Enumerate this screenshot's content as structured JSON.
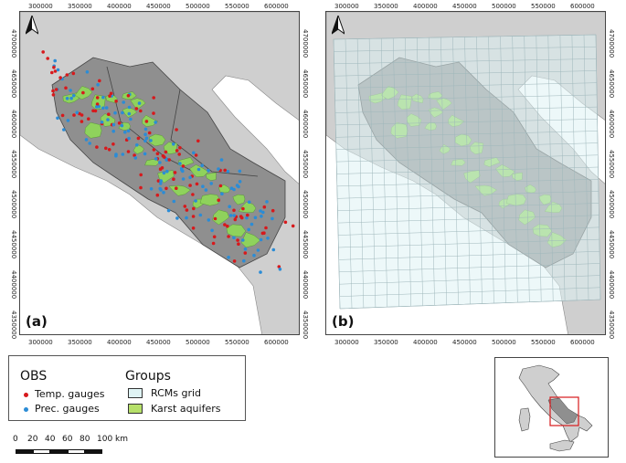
{
  "panels": [
    {
      "label": "(a)"
    },
    {
      "label": "(b)"
    }
  ],
  "north_arrow": "N",
  "x_ticks": [
    "300000",
    "350000",
    "400000",
    "450000",
    "500000",
    "550000",
    "600000"
  ],
  "y_ticks": [
    "4700000",
    "4650000",
    "4600000",
    "4550000",
    "4500000",
    "4450000",
    "4400000",
    "4350000"
  ],
  "legend": {
    "obs_title": "OBS",
    "obs_items": [
      "Temp. gauges",
      "Prec. gauges"
    ],
    "groups_title": "Groups",
    "groups_items": [
      "RCMs grid",
      "Karst aquifers"
    ]
  },
  "scale_bar": {
    "labels": [
      "0",
      "20",
      "40",
      "60",
      "80",
      "100 km"
    ]
  },
  "colors": {
    "temp_gauge": "#d7191c",
    "prec_gauge": "#2b8cd6",
    "karst": "#8fd65a",
    "rcm_grid_fill": "#dff3f4",
    "rcm_grid_line": "#9fb7bb",
    "land_region": "#8f8f8f",
    "land_outer": "#cfcfcf",
    "sea": "#ffffff"
  },
  "icons": {
    "north": "north-arrow-icon"
  }
}
